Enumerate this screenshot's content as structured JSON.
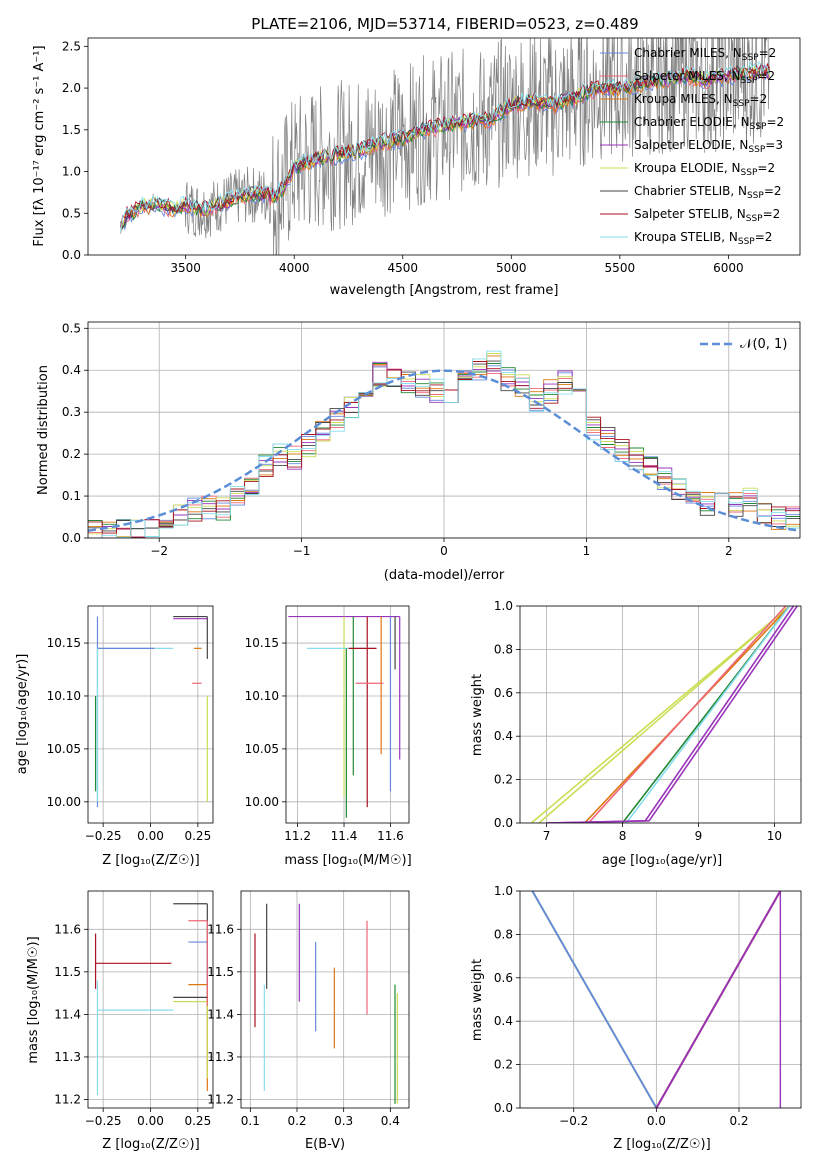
{
  "title": "PLATE=2106, MJD=53714, FIBERID=0523, z=0.489",
  "legend_labels": [
    "Chabrier MILES, N_SSP=2",
    "Salpeter MILES, N_SSP=2",
    "Kroupa MILES, N_SSP=2",
    "Chabrier ELODIE, N_SSP=2",
    "Salpeter ELODIE, N_SSP=3",
    "Kroupa ELODIE, N_SSP=2",
    "Chabrier STELIB, N_SSP=2",
    "Salpeter STELIB, N_SSP=2",
    "Kroupa STELIB, N_SSP=2"
  ],
  "colors": [
    "#6688dd",
    "#ee6677",
    "#dd7711",
    "#228833",
    "#9933bb",
    "#ccdd55",
    "#444444",
    "#aa1122",
    "#88ddee"
  ],
  "chart_data": [
    {
      "type": "line",
      "panel": "spectrum",
      "xlabel": "wavelength [Angstrom, rest frame]",
      "ylabel": "Flux [f_λ 10^-17 erg cm^-2 s^-1 A^-1]",
      "xlim": [
        3050,
        6330
      ],
      "ylim": [
        0,
        2.6
      ],
      "xticks": [
        3500,
        4000,
        4500,
        5000,
        5500,
        6000
      ],
      "yticks": [
        0.0,
        0.5,
        1.0,
        1.5,
        2.0,
        2.5
      ],
      "model_x": [
        3200,
        3230,
        3250,
        3280,
        3300,
        3330,
        3360,
        3400,
        3450,
        3500,
        3550,
        3600,
        3650,
        3700,
        3750,
        3800,
        3850,
        3900,
        3950,
        4000,
        4100,
        4200,
        4300,
        4400,
        4500,
        4600,
        4700,
        4800,
        4900,
        5000,
        5100,
        5200,
        5300,
        5400,
        5500,
        5600,
        5700,
        5800,
        5900,
        6000,
        6100,
        6200
      ],
      "model_y": [
        0.3,
        0.48,
        0.5,
        0.55,
        0.6,
        0.58,
        0.62,
        0.58,
        0.55,
        0.6,
        0.55,
        0.55,
        0.6,
        0.65,
        0.7,
        0.72,
        0.72,
        0.7,
        0.8,
        1.05,
        1.15,
        1.2,
        1.25,
        1.35,
        1.4,
        1.5,
        1.55,
        1.6,
        1.62,
        1.8,
        1.85,
        1.8,
        1.9,
        2.0,
        2.0,
        2.05,
        2.1,
        2.15,
        2.1,
        2.15,
        2.2,
        2.2
      ],
      "grid": false
    },
    {
      "type": "histogram",
      "panel": "residuals",
      "xlabel": "(data-model)/error",
      "ylabel": "Normed distribution",
      "xlim": [
        -2.5,
        2.5
      ],
      "ylim": [
        0,
        0.515
      ],
      "xticks": [
        -2,
        -1,
        0,
        1,
        2
      ],
      "yticks": [
        0.0,
        0.1,
        0.2,
        0.3,
        0.4,
        0.5
      ],
      "bin_width": 0.1,
      "bin_centers": [
        -2.45,
        -2.35,
        -2.25,
        -2.15,
        -2.05,
        -1.95,
        -1.85,
        -1.75,
        -1.65,
        -1.55,
        -1.45,
        -1.35,
        -1.25,
        -1.15,
        -1.05,
        -0.95,
        -0.85,
        -0.75,
        -0.65,
        -0.55,
        -0.45,
        -0.35,
        -0.25,
        -0.15,
        -0.05,
        0.05,
        0.15,
        0.25,
        0.35,
        0.45,
        0.55,
        0.65,
        0.75,
        0.85,
        0.95,
        1.05,
        1.15,
        1.25,
        1.35,
        1.45,
        1.55,
        1.65,
        1.75,
        1.85,
        1.95,
        2.05,
        2.15,
        2.25,
        2.35,
        2.45
      ],
      "hist_values": [
        0.015,
        0.01,
        0.02,
        0.025,
        0.03,
        0.045,
        0.06,
        0.07,
        0.07,
        0.07,
        0.1,
        0.13,
        0.17,
        0.2,
        0.19,
        0.22,
        0.26,
        0.28,
        0.31,
        0.36,
        0.39,
        0.38,
        0.37,
        0.36,
        0.35,
        0.34,
        0.37,
        0.4,
        0.42,
        0.38,
        0.36,
        0.33,
        0.35,
        0.37,
        0.33,
        0.26,
        0.24,
        0.21,
        0.19,
        0.17,
        0.14,
        0.12,
        0.09,
        0.08,
        0.09,
        0.08,
        0.09,
        0.06,
        0.05,
        0.05
      ],
      "series": [
        {
          "name": "N(0,1)",
          "style": "dashed",
          "color": "#5b8ed6"
        }
      ],
      "legend_label": "𝒩(0, 1)",
      "grid": true
    },
    {
      "type": "scatter",
      "panel": "age-vs-Z",
      "xlabel": "Z [log10(Z/Z☉)]",
      "ylabel": "age [log10(age/yr)]",
      "xlim": [
        -0.33,
        0.33
      ],
      "ylim": [
        9.98,
        10.185
      ],
      "xticks": [
        -0.25,
        0.0,
        0.25
      ],
      "yticks": [
        10.0,
        10.05,
        10.1,
        10.15
      ],
      "grid": true
    },
    {
      "type": "scatter",
      "panel": "age-vs-mass",
      "xlabel": "mass [log10(M/M☉)]",
      "xlim": [
        11.15,
        11.68
      ],
      "ylim": [
        9.98,
        10.185
      ],
      "xticks": [
        11.2,
        11.4,
        11.6
      ],
      "yticks": [
        10.0,
        10.05,
        10.1,
        10.15
      ],
      "grid": true
    },
    {
      "type": "line",
      "panel": "cumulative-age",
      "xlabel": "age [log10(age/yr)]",
      "ylabel": "mass weight",
      "xlim": [
        6.65,
        10.35
      ],
      "ylim": [
        0,
        1
      ],
      "xticks": [
        7,
        8,
        9,
        10
      ],
      "yticks": [
        0.0,
        0.2,
        0.4,
        0.6,
        0.8,
        1.0
      ],
      "series": [
        {
          "values_x": [
            6.8,
            10.2
          ],
          "values_y": [
            0,
            1
          ]
        },
        {
          "values_x": [
            6.9,
            10.2
          ],
          "values_y": [
            0,
            1
          ]
        },
        {
          "values_x": [
            7.5,
            10.2
          ],
          "values_y": [
            0,
            1
          ]
        },
        {
          "values_x": [
            7.55,
            10.15
          ],
          "values_y": [
            0,
            1
          ]
        },
        {
          "values_x": [
            8.0,
            10.2
          ],
          "values_y": [
            0,
            1
          ]
        },
        {
          "values_x": [
            8.05,
            10.2
          ],
          "values_y": [
            0,
            1
          ]
        },
        {
          "values_x": [
            7.0,
            8.3,
            10.25
          ],
          "values_y": [
            0,
            0.01,
            1
          ]
        },
        {
          "values_x": [
            7.0,
            8.35,
            10.3
          ],
          "values_y": [
            0,
            0.01,
            1
          ]
        }
      ],
      "grid": true
    },
    {
      "type": "scatter",
      "panel": "mass-vs-Z",
      "xlabel": "Z [log10(Z/Z☉)]",
      "ylabel": "mass [log10(M/M☉)]",
      "xlim": [
        -0.33,
        0.33
      ],
      "ylim": [
        11.18,
        11.69
      ],
      "xticks": [
        -0.25,
        0.0,
        0.25
      ],
      "yticks": [
        11.2,
        11.3,
        11.4,
        11.5,
        11.6
      ],
      "grid": true
    },
    {
      "type": "scatter",
      "panel": "mass-vs-EBV",
      "xlabel": "E(B-V)",
      "xlim": [
        0.08,
        0.44
      ],
      "ylim": [
        11.18,
        11.69
      ],
      "xticks": [
        0.1,
        0.2,
        0.3,
        0.4
      ],
      "yticks": [
        11.2,
        11.3,
        11.4,
        11.5,
        11.6
      ],
      "grid": true
    },
    {
      "type": "line",
      "panel": "cumulative-Z",
      "xlabel": "Z [log10(Z/Z☉)]",
      "ylabel": "mass weight",
      "xlim": [
        -0.33,
        0.35
      ],
      "ylim": [
        0,
        1
      ],
      "xticks": [
        -0.2,
        0.0,
        0.2
      ],
      "yticks": [
        0.0,
        0.2,
        0.4,
        0.6,
        0.8,
        1.0
      ],
      "series": [
        {
          "values_x": [
            -0.3,
            0.0
          ],
          "values_y": [
            1,
            0
          ]
        },
        {
          "values_x": [
            0.0,
            0.3
          ],
          "values_y": [
            0,
            1
          ]
        }
      ],
      "grid": true
    }
  ]
}
